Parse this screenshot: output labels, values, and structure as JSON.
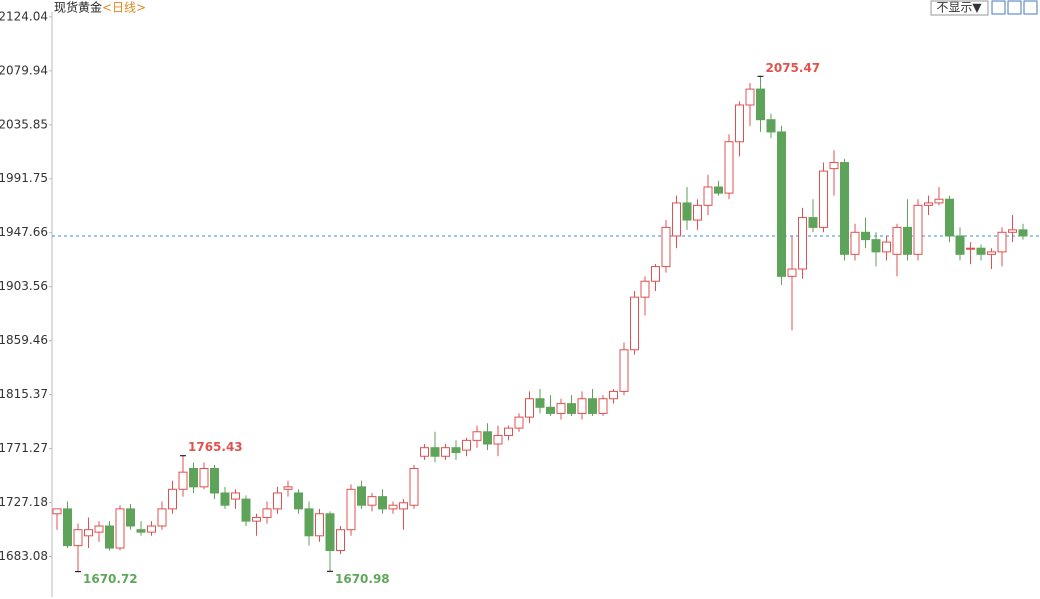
{
  "chart_data": {
    "type": "candlestick",
    "title": "现货黄金",
    "subtitle": "<日线>",
    "up_color": "#e05050",
    "down_color": "#5ea35a",
    "reference_line": 1945,
    "ylim": [
      1650,
      2128
    ],
    "yticks": [
      1683.08,
      1727.18,
      1771.27,
      1815.37,
      1859.46,
      1903.56,
      1947.66,
      1991.75,
      2035.85,
      2079.94,
      2124.04
    ],
    "open": [
      1718,
      1722,
      1692,
      1700,
      1703,
      1708,
      1690,
      1722,
      1705,
      1703,
      1708,
      1722,
      1738,
      1755,
      1740,
      1755,
      1735,
      1730,
      1730,
      1712,
      1715,
      1722,
      1738,
      1735,
      1722,
      1700,
      1718,
      1688,
      1705,
      1740,
      1725,
      1732,
      1722,
      1722,
      1725,
      1765,
      1772,
      1765,
      1772,
      1770,
      1778,
      1785,
      1775,
      1782,
      1788,
      1797,
      1812,
      1805,
      1800,
      1808,
      1800,
      1812,
      1800,
      1812,
      1818,
      1852,
      1895,
      1908,
      1920,
      1945,
      1972,
      1958,
      1970,
      1985,
      1980,
      2022,
      2052,
      2065,
      2040,
      2030,
      1912,
      1918,
      1960,
      1952,
      2000,
      2005,
      1930,
      1948,
      1942,
      1932,
      1930,
      1952,
      1930,
      1970,
      1972,
      1975,
      1945,
      1935,
      1935,
      1930,
      1932,
      1948,
      1950
    ],
    "high": [
      1722,
      1728,
      1710,
      1715,
      1712,
      1712,
      1725,
      1726,
      1712,
      1712,
      1728,
      1745,
      1765.43,
      1760,
      1760,
      1758,
      1740,
      1738,
      1733,
      1718,
      1728,
      1740,
      1745,
      1738,
      1728,
      1722,
      1720,
      1708,
      1742,
      1745,
      1735,
      1738,
      1728,
      1730,
      1758,
      1775,
      1785,
      1775,
      1778,
      1780,
      1790,
      1792,
      1790,
      1790,
      1800,
      1818,
      1820,
      1815,
      1812,
      1815,
      1818,
      1820,
      1815,
      1820,
      1858,
      1900,
      1912,
      1922,
      1958,
      1978,
      1985,
      1975,
      1995,
      1990,
      2028,
      2055,
      2070,
      2075.47,
      2045,
      2035,
      1945,
      1968,
      1975,
      2005,
      2015,
      2008,
      1955,
      1960,
      1948,
      1945,
      1955,
      1975,
      1975,
      1978,
      1985,
      1978,
      1952,
      1940,
      1938,
      1935,
      1952,
      1962,
      1955
    ],
    "low": [
      1705,
      1690,
      1670.72,
      1690,
      1695,
      1688,
      1688,
      1705,
      1700,
      1700,
      1705,
      1718,
      1732,
      1735,
      1738,
      1730,
      1722,
      1722,
      1708,
      1700,
      1710,
      1718,
      1732,
      1718,
      1692,
      1695,
      1670.98,
      1685,
      1700,
      1722,
      1720,
      1718,
      1718,
      1705,
      1722,
      1762,
      1760,
      1762,
      1762,
      1765,
      1772,
      1770,
      1765,
      1778,
      1785,
      1792,
      1800,
      1798,
      1795,
      1798,
      1795,
      1798,
      1798,
      1808,
      1815,
      1848,
      1880,
      1900,
      1915,
      1935,
      1950,
      1950,
      1962,
      1978,
      1975,
      2010,
      2035,
      2030,
      2025,
      1905,
      1868,
      1910,
      1948,
      1948,
      1978,
      1925,
      1925,
      1935,
      1920,
      1925,
      1912,
      1925,
      1925,
      1962,
      1970,
      1940,
      1925,
      1922,
      1925,
      1918,
      1920,
      1940,
      1942
    ],
    "close": [
      1722,
      1692,
      1705,
      1705,
      1708,
      1690,
      1722,
      1708,
      1703,
      1708,
      1722,
      1738,
      1752,
      1740,
      1755,
      1735,
      1725,
      1735,
      1712,
      1715,
      1722,
      1735,
      1740,
      1722,
      1700,
      1718,
      1688,
      1705,
      1738,
      1725,
      1732,
      1722,
      1725,
      1727,
      1755,
      1772,
      1765,
      1772,
      1768,
      1778,
      1785,
      1775,
      1782,
      1788,
      1797,
      1812,
      1805,
      1800,
      1808,
      1800,
      1812,
      1800,
      1812,
      1818,
      1852,
      1895,
      1908,
      1920,
      1952,
      1972,
      1958,
      1970,
      1985,
      1980,
      2022,
      2052,
      2065,
      2040,
      2030,
      1912,
      1918,
      1960,
      1952,
      1998,
      2005,
      1930,
      1948,
      1942,
      1932,
      1940,
      1952,
      1930,
      1970,
      1972,
      1975,
      1945,
      1930,
      1935,
      1930,
      1932,
      1948,
      1950,
      1945
    ]
  },
  "toolbar": {
    "display_toggle": "不显示▼"
  }
}
